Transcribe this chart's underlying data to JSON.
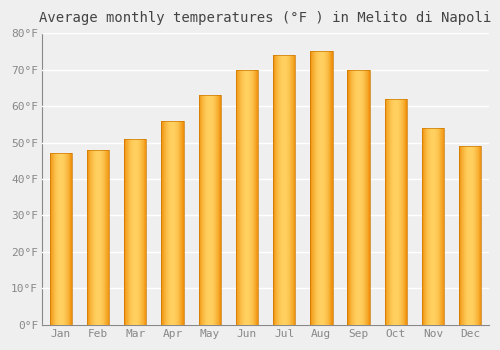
{
  "title": "Average monthly temperatures (°F ) in Melito di Napoli",
  "months": [
    "Jan",
    "Feb",
    "Mar",
    "Apr",
    "May",
    "Jun",
    "Jul",
    "Aug",
    "Sep",
    "Oct",
    "Nov",
    "Dec"
  ],
  "values": [
    47,
    48,
    51,
    56,
    63,
    70,
    74,
    75,
    70,
    62,
    54,
    49
  ],
  "bar_color_center": "#FFD060",
  "bar_color_edge": "#F0900A",
  "bar_edge_color": "#CC7700",
  "ylim": [
    0,
    80
  ],
  "yticks": [
    0,
    10,
    20,
    30,
    40,
    50,
    60,
    70,
    80
  ],
  "ytick_labels": [
    "0°F",
    "10°F",
    "20°F",
    "30°F",
    "40°F",
    "50°F",
    "60°F",
    "70°F",
    "80°F"
  ],
  "bg_color": "#EFEFEF",
  "grid_color": "#FFFFFF",
  "title_fontsize": 10,
  "tick_fontsize": 8,
  "font_family": "monospace",
  "bar_width": 0.6
}
